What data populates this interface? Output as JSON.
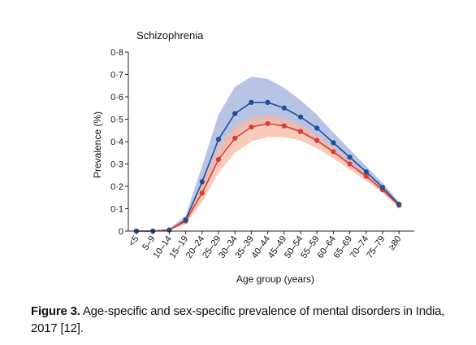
{
  "chart_data": {
    "type": "line",
    "title": "Schizophrenia",
    "xlabel": "Age group (years)",
    "ylabel": "Prevalence (%)",
    "categories": [
      "<5",
      "5–9",
      "10–14",
      "15–19",
      "20–24",
      "25–29",
      "30–34",
      "35–39",
      "40–44",
      "45–49",
      "50–54",
      "55–59",
      "60–64",
      "65–69",
      "70–74",
      "75–79",
      "≥80"
    ],
    "ylim": [
      0,
      0.8
    ],
    "yticks": [
      "0",
      "0·1",
      "0·2",
      "0·3",
      "0·4",
      "0·5",
      "0·6",
      "0·7",
      "0·8"
    ],
    "grid": false,
    "series": [
      {
        "color": "#1f4e9c",
        "band_color": "#9fb0da",
        "values": [
          0.0,
          0.0,
          0.005,
          0.05,
          0.22,
          0.41,
          0.525,
          0.575,
          0.575,
          0.55,
          0.51,
          0.46,
          0.395,
          0.33,
          0.265,
          0.195,
          0.12
        ],
        "upper": [
          0.0,
          0.0,
          0.01,
          0.07,
          0.29,
          0.52,
          0.645,
          0.69,
          0.68,
          0.64,
          0.585,
          0.52,
          0.44,
          0.365,
          0.29,
          0.215,
          0.13
        ],
        "lower": [
          0.0,
          0.0,
          0.003,
          0.035,
          0.17,
          0.33,
          0.43,
          0.475,
          0.48,
          0.465,
          0.435,
          0.395,
          0.345,
          0.29,
          0.235,
          0.175,
          0.11
        ]
      },
      {
        "color": "#e03a2f",
        "band_color": "#f6b9a4",
        "values": [
          0.0,
          0.0,
          0.005,
          0.045,
          0.17,
          0.32,
          0.415,
          0.465,
          0.48,
          0.47,
          0.445,
          0.405,
          0.355,
          0.3,
          0.245,
          0.185,
          0.115
        ],
        "upper": [
          0.0,
          0.0,
          0.008,
          0.06,
          0.215,
          0.38,
          0.47,
          0.51,
          0.52,
          0.505,
          0.475,
          0.43,
          0.375,
          0.315,
          0.255,
          0.19,
          0.12
        ],
        "lower": [
          0.0,
          0.0,
          0.003,
          0.03,
          0.13,
          0.26,
          0.35,
          0.4,
          0.42,
          0.42,
          0.405,
          0.37,
          0.325,
          0.275,
          0.225,
          0.17,
          0.105
        ]
      }
    ]
  },
  "caption": {
    "label": "Figure 3.",
    "text": " Age-specific and sex-specific prevalence of mental disorders in India, 2017 [12]."
  }
}
